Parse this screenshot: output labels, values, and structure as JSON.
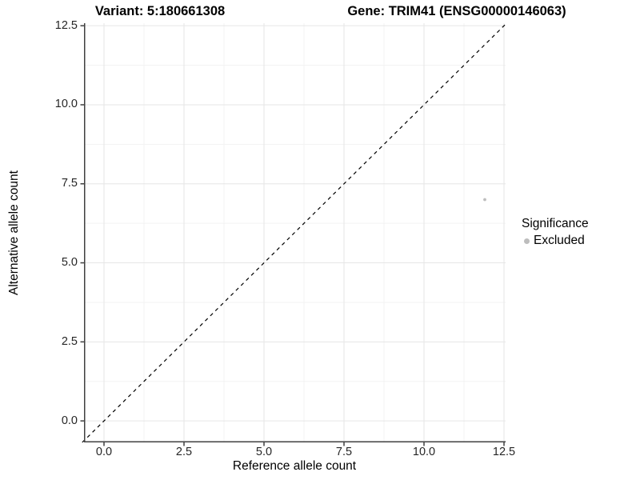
{
  "header": {
    "variant_title": "Variant: 5:180661308",
    "gene_title": "Gene: TRIM41 (ENSG00000146063)"
  },
  "axes": {
    "x_label": "Reference allele count",
    "y_label": "Alternative allele count",
    "x_tick_labels": [
      "0.0",
      "2.5",
      "5.0",
      "7.5",
      "10.0",
      "12.5"
    ],
    "y_tick_labels": [
      "0.0",
      "2.5",
      "5.0",
      "7.5",
      "10.0",
      "12.5"
    ]
  },
  "legend": {
    "title": "Significance",
    "items": [
      {
        "label": "Excluded",
        "color": "#bdbdbd"
      }
    ]
  },
  "colors": {
    "point": "#bdbdbd",
    "axis_line": "#404040",
    "tick_mark": "#404040",
    "grid_major": "#e6e6e6",
    "grid_minor": "#f3f3f3",
    "reference_line": "#000000",
    "background": "#ffffff"
  },
  "chart_data": {
    "type": "scatter",
    "title": "Variant: 5:180661308   Gene: TRIM41 (ENSG00000146063)",
    "xlabel": "Reference allele count",
    "ylabel": "Alternative allele count",
    "xlim": [
      -0.625,
      12.55
    ],
    "ylim": [
      -0.68,
      12.58
    ],
    "x_ticks": [
      0,
      2.5,
      5,
      7.5,
      10,
      12.5
    ],
    "y_ticks": [
      0,
      2.5,
      5,
      7.5,
      10,
      12.5
    ],
    "x_minor_ticks": [
      1.25,
      3.75,
      6.25,
      8.75,
      11.25
    ],
    "y_minor_ticks": [
      1.25,
      3.75,
      6.25,
      8.75,
      11.25
    ],
    "grid": "major and minor, light gray on white",
    "legend_position": "right-center",
    "series": [
      {
        "name": "Excluded",
        "color": "#bdbdbd",
        "marker": "circle",
        "points": [
          {
            "x": 11.9,
            "y": 7.0
          }
        ]
      }
    ],
    "reference_line": {
      "type": "identity y=x",
      "style": "dashed",
      "color": "#000000",
      "from": [
        -0.68,
        -0.68
      ],
      "to": [
        12.58,
        12.58
      ]
    }
  }
}
